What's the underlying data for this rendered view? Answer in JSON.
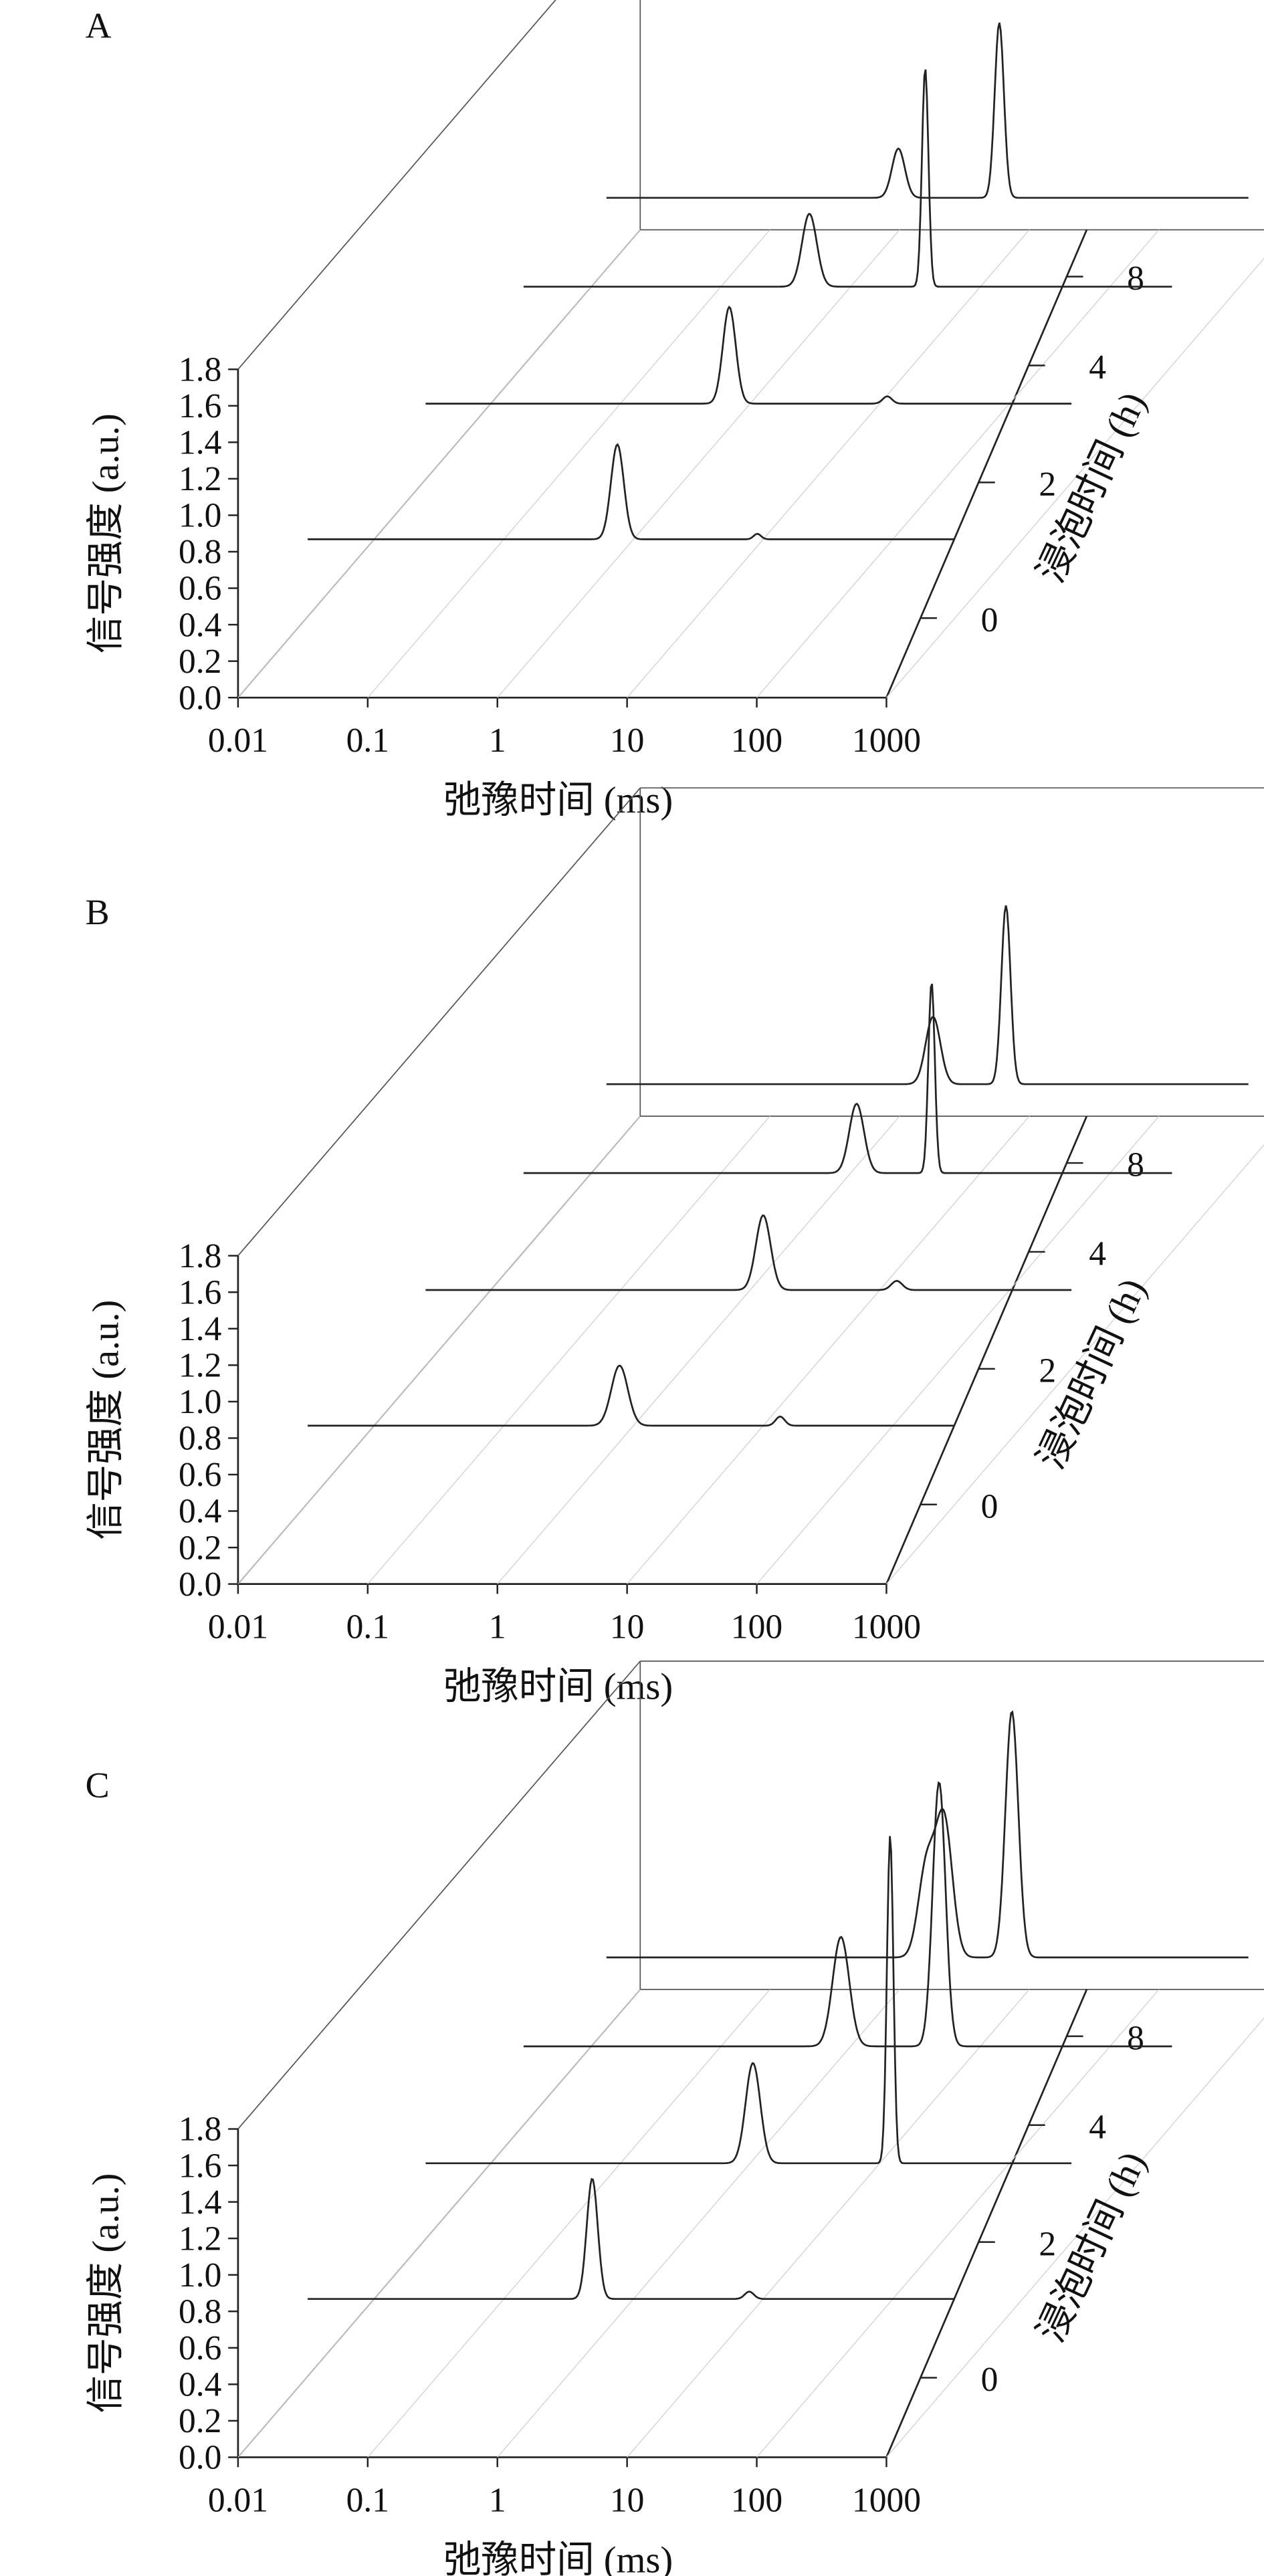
{
  "chart_data": [
    {
      "panel": "A",
      "type": "line",
      "style": "3d-waterfall",
      "xlabel": "弛豫时间 (ms)",
      "ylabel": "信号强度 (a.u.)",
      "zlabel": "浸泡时间 (h)",
      "xscale": "log",
      "xlim": [
        0.01,
        1000
      ],
      "ylim": [
        0,
        1.8
      ],
      "xticks": [
        "0.01",
        "0.1",
        "1",
        "10",
        "100",
        "1000"
      ],
      "yticks": [
        "0.0",
        "0.2",
        "0.4",
        "0.6",
        "0.8",
        "1.0",
        "1.2",
        "1.4",
        "1.6",
        "1.8"
      ],
      "series": [
        {
          "name": "0",
          "peaks": [
            {
              "t": 2.5,
              "amp": 0.52,
              "w": 0.07
            },
            {
              "t": 30,
              "amp": 0.03,
              "w": 0.04
            }
          ]
        },
        {
          "name": "2",
          "peaks": [
            {
              "t": 2.3,
              "amp": 0.53,
              "w": 0.07
            },
            {
              "t": 38,
              "amp": 0.04,
              "w": 0.05
            }
          ]
        },
        {
          "name": "4",
          "peaks": [
            {
              "t": 1.6,
              "amp": 0.4,
              "w": 0.08
            },
            {
              "t": 12.5,
              "amp": 1.2,
              "w": 0.035
            }
          ]
        },
        {
          "name": "8",
          "peaks": [
            {
              "t": 2.0,
              "amp": 0.27,
              "w": 0.07
            },
            {
              "t": 12.0,
              "amp": 0.96,
              "w": 0.05
            }
          ]
        }
      ]
    },
    {
      "panel": "B",
      "type": "line",
      "style": "3d-waterfall",
      "xlabel": "弛豫时间 (ms)",
      "ylabel": "信号强度 (a.u.)",
      "zlabel": "浸泡时间 (h)",
      "xscale": "log",
      "xlim": [
        0.01,
        1000
      ],
      "ylim": [
        0,
        1.8
      ],
      "xticks": [
        "0.01",
        "0.1",
        "1",
        "10",
        "100",
        "1000"
      ],
      "yticks": [
        "0.0",
        "0.2",
        "0.4",
        "0.6",
        "0.8",
        "1.0",
        "1.2",
        "1.4",
        "1.6",
        "1.8"
      ],
      "series": [
        {
          "name": "0",
          "peaks": [
            {
              "t": 2.6,
              "amp": 0.33,
              "w": 0.09
            },
            {
              "t": 45,
              "amp": 0.05,
              "w": 0.05
            }
          ]
        },
        {
          "name": "2",
          "peaks": [
            {
              "t": 4.2,
              "amp": 0.41,
              "w": 0.08
            },
            {
              "t": 45,
              "amp": 0.05,
              "w": 0.06
            }
          ]
        },
        {
          "name": "4",
          "peaks": [
            {
              "t": 3.7,
              "amp": 0.38,
              "w": 0.08
            },
            {
              "t": 14,
              "amp": 1.05,
              "w": 0.035
            }
          ]
        },
        {
          "name": "8",
          "peaks": [
            {
              "t": 3.7,
              "amp": 0.37,
              "w": 0.08
            },
            {
              "t": 13.5,
              "amp": 0.98,
              "w": 0.05
            }
          ]
        }
      ]
    },
    {
      "panel": "C",
      "type": "line",
      "style": "3d-waterfall",
      "xlabel": "弛豫时间 (ms)",
      "ylabel": "信号强度 (a.u.)",
      "zlabel": "浸泡时间 (h)",
      "xscale": "log",
      "xlim": [
        0.01,
        1000
      ],
      "ylim": [
        0,
        1.8
      ],
      "xticks": [
        "0.01",
        "0.1",
        "1",
        "10",
        "100",
        "1000"
      ],
      "yticks": [
        "0.0",
        "0.2",
        "0.4",
        "0.6",
        "0.8",
        "1.0",
        "1.2",
        "1.4",
        "1.6",
        "1.8"
      ],
      "series": [
        {
          "name": "0",
          "peaks": [
            {
              "t": 1.6,
              "amp": 0.66,
              "w": 0.06
            },
            {
              "t": 26,
              "amp": 0.04,
              "w": 0.05
            }
          ]
        },
        {
          "name": "2",
          "peaks": [
            {
              "t": 3.5,
              "amp": 0.55,
              "w": 0.08
            },
            {
              "t": 40,
              "amp": 1.8,
              "w": 0.035
            }
          ]
        },
        {
          "name": "4",
          "peaks": [
            {
              "t": 2.8,
              "amp": 0.6,
              "w": 0.09
            },
            {
              "t": 16,
              "amp": 1.45,
              "w": 0.07
            }
          ]
        },
        {
          "name": "8",
          "peaks": [
            {
              "t": 3.3,
              "amp": 0.5,
              "w": 0.09
            },
            {
              "t": 15,
              "amp": 1.35,
              "w": 0.07
            },
            {
              "t": 4.5,
              "amp": 0.75,
              "w": 0.09
            }
          ]
        }
      ]
    }
  ]
}
